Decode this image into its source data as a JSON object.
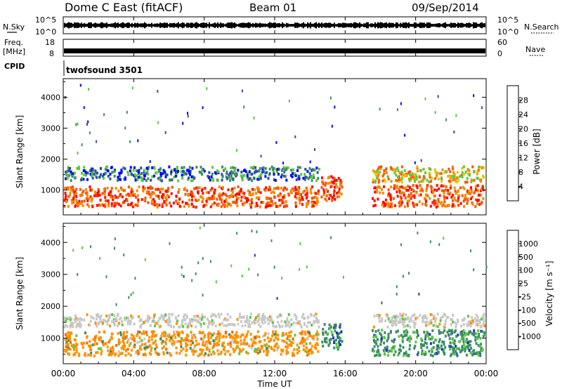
{
  "header": {
    "title": "Dome C East (fitACF)",
    "beam": "Beam 01",
    "date": "09/Sep/2014"
  },
  "time_axis": {
    "label": "Time UT",
    "ticks": [
      "00:00",
      "04:00",
      "08:00",
      "12:00",
      "16:00",
      "20:00",
      "00:00"
    ],
    "range_hours": [
      0,
      24
    ]
  },
  "top_panels": {
    "nsky": {
      "label": "N.Sky",
      "left_ticks": [
        "10^5",
        "10^0"
      ],
      "right_label": "N.Search",
      "right_ticks": [
        "10^5",
        "10^0"
      ]
    },
    "freq": {
      "label_line1": "Freq.",
      "label_line2": "[MHz]",
      "left_ticks": [
        "18",
        "8"
      ],
      "right_label": "Nave",
      "right_ticks": [
        "60",
        "0"
      ]
    },
    "cpid": {
      "label": "CPID",
      "program": "twofsound 3501"
    }
  },
  "chart_data": [
    {
      "type": "heatmap",
      "name": "power-panel",
      "ylabel": "Slant Range [km]",
      "xlabel": "",
      "ylim": [
        200,
        4600
      ],
      "yticks": [
        1000,
        2000,
        3000,
        4000
      ],
      "ytick_labels": [
        "1000",
        "2000",
        "3000",
        "4000"
      ],
      "xlim_hours": [
        0,
        24
      ],
      "colorbar": {
        "label": "Power [dB]",
        "tick_labels": [
          "4",
          "8",
          "12",
          "16",
          "20",
          "24",
          "28"
        ],
        "colors": [
          "#0000ff",
          "#2d4fa0",
          "#3c8c64",
          "#5ac83c",
          "#dcc800",
          "#f08c00",
          "#ff5000",
          "#ff0000"
        ]
      },
      "scatter_bands": [
        {
          "t0": 0.0,
          "t1": 14.6,
          "r0": 1250,
          "r1": 1800,
          "level": "low"
        },
        {
          "t0": 0.0,
          "t1": 14.6,
          "r0": 400,
          "r1": 1150,
          "level": "high"
        },
        {
          "t0": 14.6,
          "t1": 15.9,
          "r0": 600,
          "r1": 1500,
          "level": "high"
        },
        {
          "t0": 17.5,
          "t1": 24.0,
          "r0": 1200,
          "r1": 1800,
          "level": "mid"
        },
        {
          "t0": 17.5,
          "t1": 24.0,
          "r0": 400,
          "r1": 1200,
          "level": "high"
        }
      ]
    },
    {
      "type": "heatmap",
      "name": "velocity-panel",
      "ylabel": "Slant Range [km]",
      "xlabel": "Time UT",
      "ylim": [
        200,
        4600
      ],
      "yticks": [
        1000,
        2000,
        3000,
        4000
      ],
      "ytick_labels": [
        "1000",
        "2000",
        "3000",
        "4000"
      ],
      "xlim_hours": [
        0,
        24
      ],
      "colorbar": {
        "label": "Velocity [m s⁻¹]",
        "tick_labels": [
          "1000",
          "500",
          "100",
          "25",
          "-25",
          "-100",
          "-500",
          "-1000"
        ],
        "colors": [
          "#2030c0",
          "#3060a0",
          "#3c8c64",
          "#5ac83c",
          "#c8c8c8",
          "#ff9000",
          "#ff6000",
          "#ff3000",
          "#ff0000"
        ]
      },
      "scatter_bands": [
        {
          "t0": 0.0,
          "t1": 14.6,
          "r0": 1300,
          "r1": 1800,
          "level": "grey"
        },
        {
          "t0": 0.0,
          "t1": 14.6,
          "r0": 400,
          "r1": 1250,
          "level": "orange"
        },
        {
          "t0": 14.6,
          "t1": 15.9,
          "r0": 600,
          "r1": 1500,
          "level": "green"
        },
        {
          "t0": 17.5,
          "t1": 24.0,
          "r0": 1300,
          "r1": 1800,
          "level": "grey"
        },
        {
          "t0": 17.5,
          "t1": 24.0,
          "r0": 400,
          "r1": 1300,
          "level": "green"
        }
      ]
    }
  ]
}
